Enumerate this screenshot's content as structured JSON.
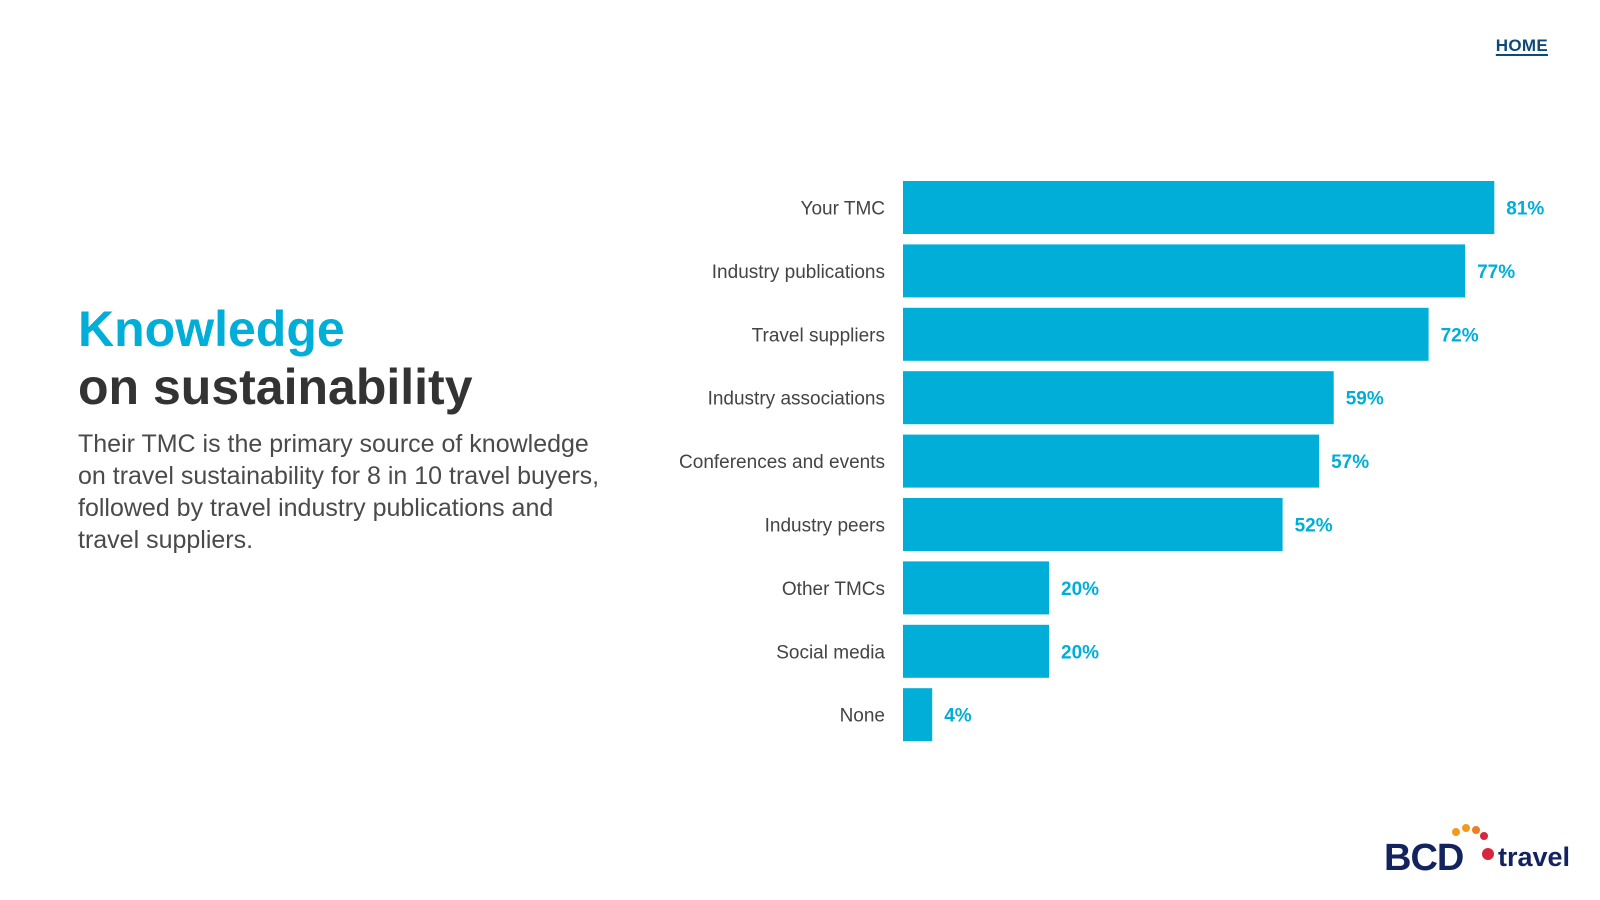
{
  "nav": {
    "home_label": "HOME"
  },
  "heading": {
    "line1": "Knowledge",
    "line2": "on sustainability"
  },
  "description": "Their TMC is the primary source of knowledge on travel sustainability for 8 in 10 travel buyers, followed by travel industry publications and travel suppliers.",
  "colors": {
    "accent": "#00aed8",
    "heading_dark": "#333333",
    "brand_navy": "#13235f",
    "brand_red": "#d7263d",
    "brand_orange": "#f29a1f"
  },
  "chart_data": {
    "type": "bar",
    "orientation": "horizontal",
    "title": "",
    "xlabel": "",
    "ylabel": "",
    "grid": false,
    "xlim": [
      0,
      100
    ],
    "categories": [
      "Your TMC",
      "Industry publications",
      "Travel suppliers",
      "Industry associations",
      "Conferences and events",
      "Industry peers",
      "Other TMCs",
      "Social media",
      "None"
    ],
    "values": [
      81,
      77,
      72,
      59,
      57,
      52,
      20,
      20,
      4
    ],
    "value_suffix": "%"
  },
  "logo": {
    "brand_text": "BCD",
    "product_text": "travel"
  }
}
